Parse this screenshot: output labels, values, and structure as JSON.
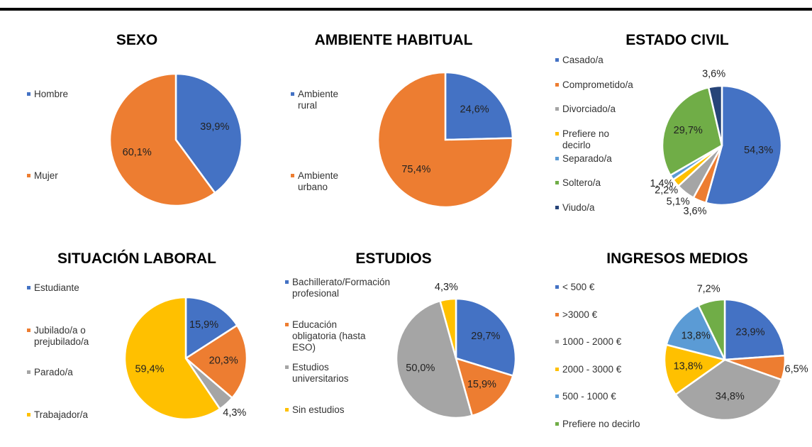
{
  "chart_data": [
    {
      "type": "pie",
      "title": "SEXO",
      "categories": [
        "Hombre",
        "Mujer"
      ],
      "values": [
        39.9,
        60.1
      ],
      "value_labels": [
        "39,9%",
        "60,1%"
      ],
      "colors": [
        "#4472c4",
        "#ed7d31"
      ]
    },
    {
      "type": "pie",
      "title": "AMBIENTE HABITUAL",
      "categories": [
        "Ambiente rural",
        "Ambiente urbano"
      ],
      "values": [
        24.6,
        75.4
      ],
      "value_labels": [
        "24,6%",
        "75,4%"
      ],
      "colors": [
        "#4472c4",
        "#ed7d31"
      ]
    },
    {
      "type": "pie",
      "title": "ESTADO CIVIL",
      "categories": [
        "Casado/a",
        "Comprometido/a",
        "Divorciado/a",
        "Prefiere no decirlo",
        "Separado/a",
        "Soltero/a",
        "Viudo/a"
      ],
      "values": [
        54.3,
        3.6,
        5.1,
        2.2,
        1.4,
        29.7,
        3.6
      ],
      "value_labels": [
        "54,3%",
        "3,6%",
        "5,1%",
        "2,2%",
        "1,4%",
        "29,7%",
        "3,6%"
      ],
      "colors": [
        "#4472c4",
        "#ed7d31",
        "#a5a5a5",
        "#ffc000",
        "#5b9bd5",
        "#70ad47",
        "#264478"
      ]
    },
    {
      "type": "pie",
      "title": "SITUACIÓN LABORAL",
      "categories": [
        "Estudiante",
        "Jubilado/a o prejubilado/a",
        "Parado/a",
        "Trabajador/a"
      ],
      "values": [
        15.9,
        20.3,
        4.3,
        59.4
      ],
      "value_labels": [
        "15,9%",
        "20,3%",
        "4,3%",
        "59,4%"
      ],
      "colors": [
        "#4472c4",
        "#ed7d31",
        "#a5a5a5",
        "#ffc000"
      ]
    },
    {
      "type": "pie",
      "title": "ESTUDIOS",
      "categories": [
        "Bachillerato/Formación profesional",
        "Educación obligatoria (hasta ESO)",
        "Estudios universitarios",
        "Sin estudios"
      ],
      "values": [
        29.7,
        15.9,
        50.0,
        4.3
      ],
      "value_labels": [
        "29,7%",
        "15,9%",
        "50,0%",
        "4,3%"
      ],
      "colors": [
        "#4472c4",
        "#ed7d31",
        "#a5a5a5",
        "#ffc000"
      ]
    },
    {
      "type": "pie",
      "title": "INGRESOS MEDIOS",
      "categories": [
        "< 500 €",
        ">3000 €",
        "1000 - 2000 €",
        "2000 - 3000 €",
        "500 - 1000 €",
        "Prefiere no decirlo"
      ],
      "values": [
        23.9,
        6.5,
        34.8,
        13.8,
        13.8,
        7.2
      ],
      "value_labels": [
        "23,9%",
        "6,5%",
        "34,8%",
        "13,8%",
        "13,8%",
        "7,2%"
      ],
      "colors": [
        "#4472c4",
        "#ed7d31",
        "#a5a5a5",
        "#ffc000",
        "#5b9bd5",
        "#70ad47"
      ]
    }
  ]
}
